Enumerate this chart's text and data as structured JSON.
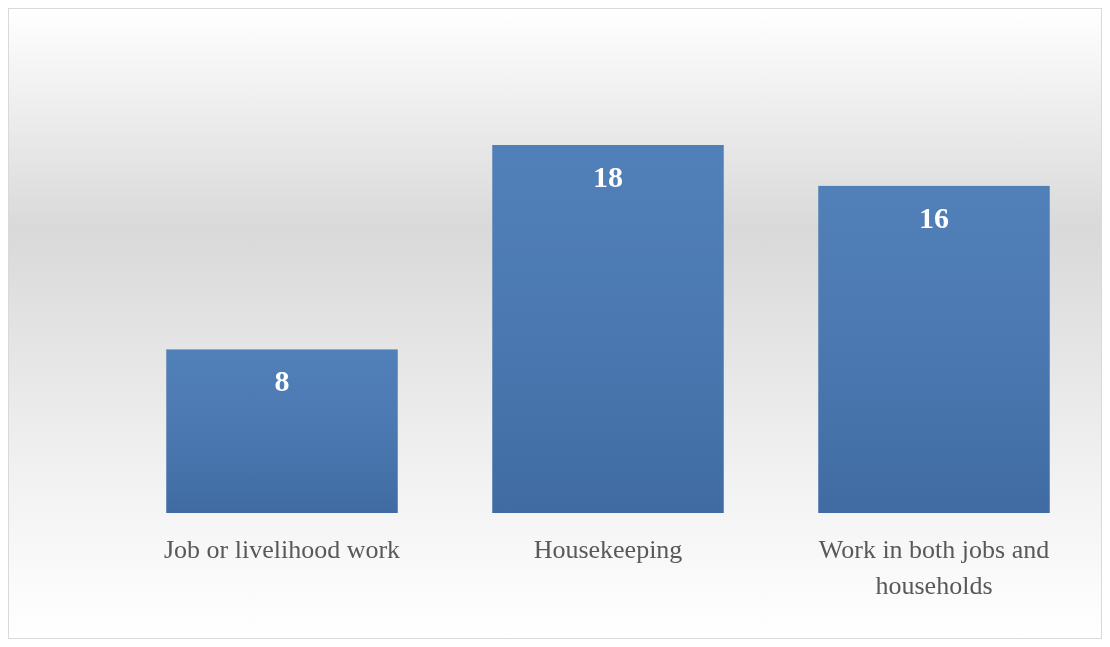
{
  "chart_data": {
    "type": "bar",
    "categories": [
      "Job or livelihood work",
      "Housekeeping",
      "Work in both jobs and households"
    ],
    "values": [
      8,
      18,
      16
    ],
    "color": "#4677b4",
    "data_labels": true
  }
}
